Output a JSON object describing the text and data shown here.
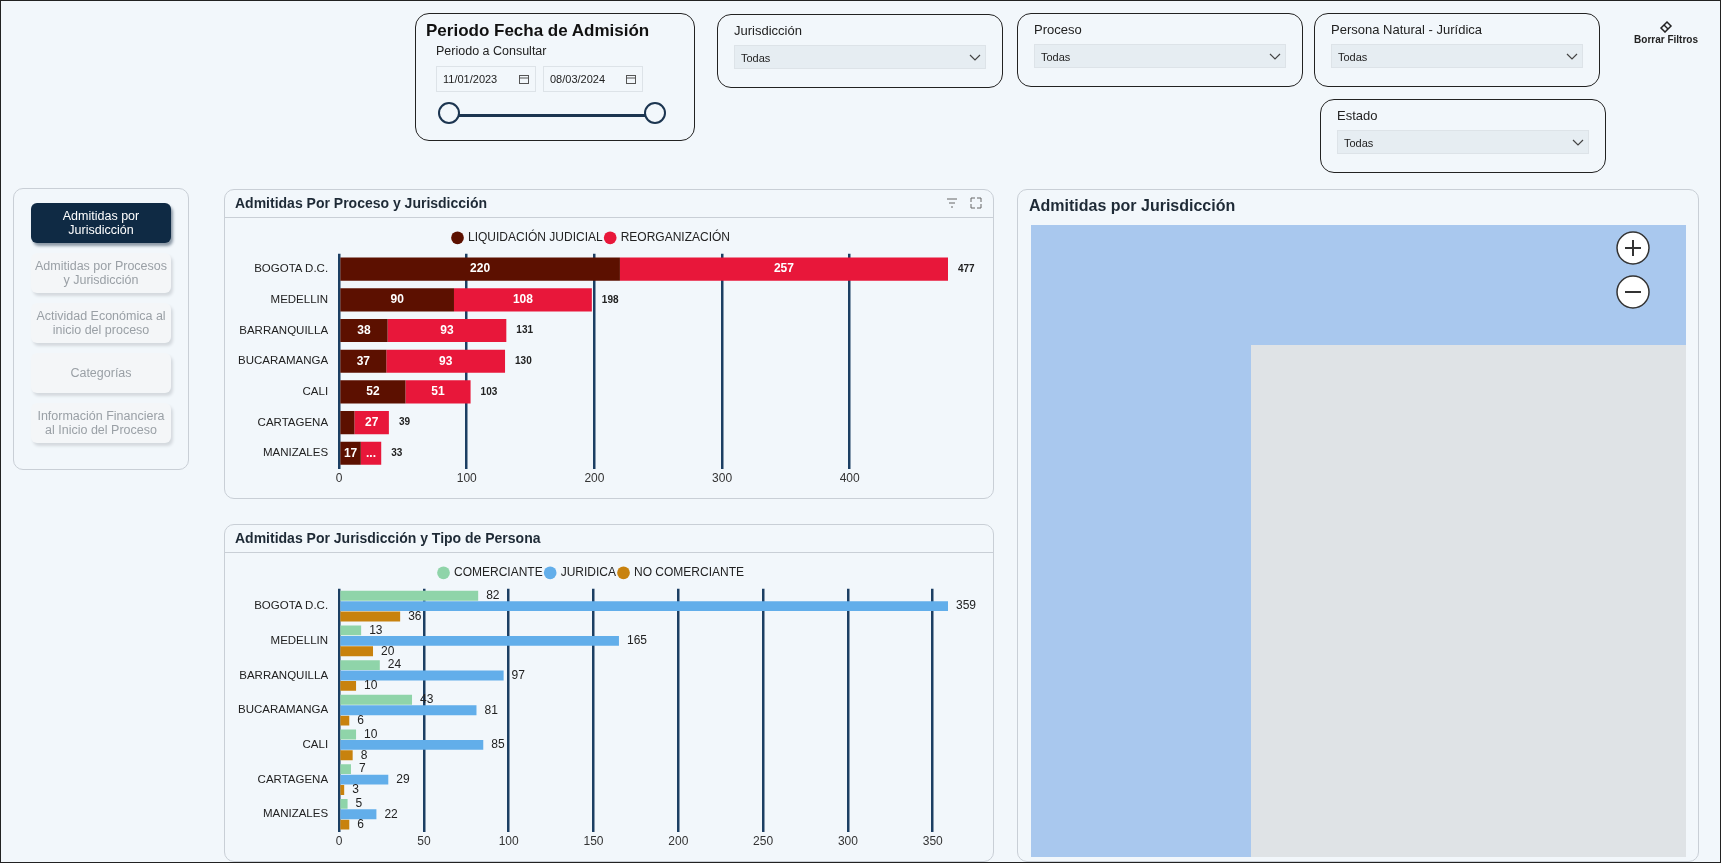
{
  "chart_data": [
    {
      "type": "other",
      "annotations": [
        "Periodo Fecha de Admisión",
        "Periodo a Consultar",
        "11/01/2023",
        "08/03/2024",
        "Jurisdicción",
        "Todas",
        "Proceso",
        "Todas",
        "Persona Natural - Jurídica",
        "Todas",
        "Estado",
        "Todas",
        "Borrar Filtros",
        "Admitidas por Jurisdicción",
        "Admitidas por Procesos y Jurisdicción",
        "Actividad Económica al inicio del proceso",
        "Categorías",
        "Información Financiera al Inicio del Proceso"
      ]
    },
    {
      "type": "bar",
      "title": "Admitidas Por Proceso y Jurisdicción",
      "orientation": "horizontal",
      "stacked": true,
      "categories": [
        "BOGOTA D.C.",
        "MEDELLIN",
        "BARRANQUILLA",
        "BUCARAMANGA",
        "CALI",
        "CARTAGENA",
        "MANIZALES"
      ],
      "series": [
        {
          "name": "LIQUIDACIÓN JUDICIAL",
          "color": "#5c1000",
          "values": [
            220,
            90,
            38,
            37,
            52,
            12,
            17
          ],
          "value_labels": [
            "220",
            "90",
            "38",
            "37",
            "52",
            null,
            "17"
          ]
        },
        {
          "name": "REORGANIZACIÓN",
          "color": "#e8173a",
          "values": [
            257,
            108,
            93,
            93,
            51,
            27,
            16
          ],
          "value_labels": [
            "257",
            "108",
            "93",
            "93",
            "51",
            "27",
            "..."
          ]
        }
      ],
      "totals": [
        "477",
        "198",
        "131",
        "130",
        "103",
        "39",
        "33"
      ],
      "xlim": [
        0,
        477
      ],
      "xticks": [
        0,
        100,
        200,
        300,
        400
      ],
      "grid": "x",
      "legend": "top"
    },
    {
      "type": "bar",
      "title": "Admitidas Por Jurisdicción y Tipo de Persona",
      "orientation": "horizontal",
      "categories": [
        "BOGOTA D.C.",
        "MEDELLIN",
        "BARRANQUILLA",
        "BUCARAMANGA",
        "CALI",
        "CARTAGENA",
        "MANIZALES"
      ],
      "series": [
        {
          "name": "COMERCIANTE",
          "color": "#8fd4a9",
          "values": [
            82,
            13,
            24,
            43,
            10,
            7,
            5
          ]
        },
        {
          "name": "JURIDICA",
          "color": "#62aeea",
          "values": [
            359,
            165,
            97,
            81,
            85,
            29,
            22
          ]
        },
        {
          "name": "NO COMERCIANTE",
          "color": "#c8820e",
          "values": [
            36,
            20,
            10,
            6,
            8,
            3,
            6
          ]
        }
      ],
      "data_labels": true,
      "xlim": [
        0,
        359
      ],
      "xticks": [
        0,
        50,
        100,
        150,
        200,
        250,
        300,
        350
      ],
      "grid": "x",
      "legend": "top"
    },
    {
      "type": "other",
      "title": "Admitidas por Jurisdicción"
    }
  ]
}
